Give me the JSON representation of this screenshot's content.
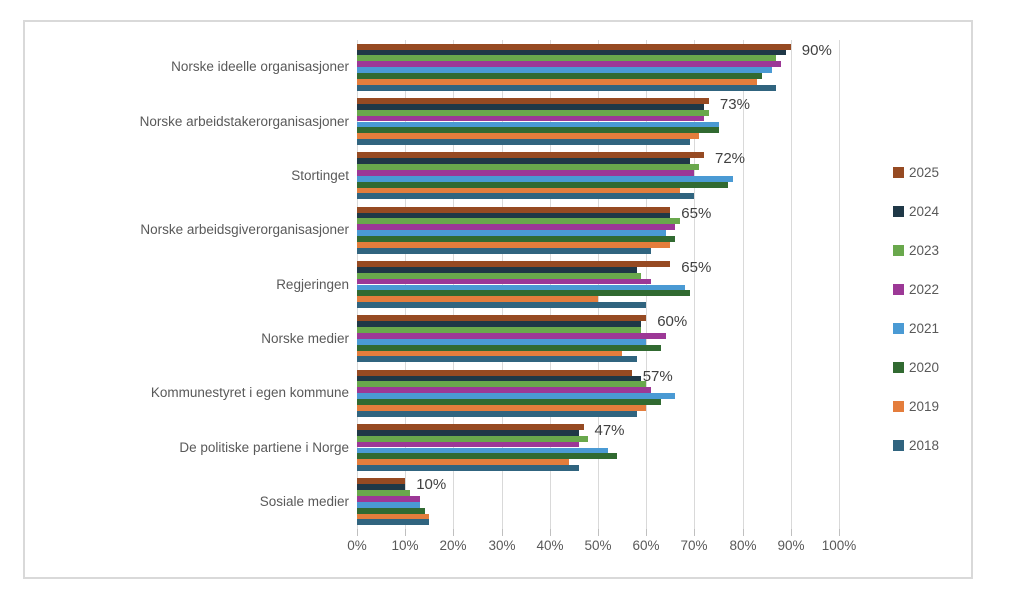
{
  "chart_data": {
    "type": "bar",
    "orientation": "horizontal",
    "categories": [
      "Norske ideelle organisasjoner",
      "Norske arbeidstakerorganisasjoner",
      "Stortinget",
      "Norske arbeidsgiverorganisasjoner",
      "Regjeringen",
      "Norske medier",
      "Kommunestyret i egen kommune",
      "De politiske partiene i Norge",
      "Sosiale medier"
    ],
    "series": [
      {
        "name": "2025",
        "color": "#964A22",
        "values": [
          90,
          73,
          72,
          65,
          65,
          60,
          57,
          47,
          10
        ]
      },
      {
        "name": "2024",
        "color": "#1F3847",
        "values": [
          89,
          72,
          69,
          65,
          58,
          59,
          59,
          46,
          10
        ]
      },
      {
        "name": "2023",
        "color": "#69A84C",
        "values": [
          87,
          73,
          71,
          67,
          59,
          59,
          60,
          48,
          11
        ]
      },
      {
        "name": "2022",
        "color": "#9C3896",
        "values": [
          88,
          72,
          70,
          66,
          61,
          64,
          61,
          46,
          13
        ]
      },
      {
        "name": "2021",
        "color": "#4A9AD4",
        "values": [
          86,
          75,
          78,
          64,
          68,
          60,
          66,
          52,
          13
        ]
      },
      {
        "name": "2020",
        "color": "#316A31",
        "values": [
          84,
          75,
          77,
          66,
          69,
          63,
          63,
          54,
          14
        ]
      },
      {
        "name": "2019",
        "color": "#E47D3C",
        "values": [
          83,
          71,
          67,
          65,
          50,
          55,
          60,
          44,
          15
        ]
      },
      {
        "name": "2018",
        "color": "#30647F",
        "values": [
          87,
          69,
          70,
          61,
          60,
          58,
          58,
          46,
          15
        ]
      }
    ],
    "data_labels": {
      "on_series": "2025",
      "labels": [
        "90%",
        "73%",
        "72%",
        "65%",
        "65%",
        "60%",
        "57%",
        "47%",
        "10%"
      ]
    },
    "x_axis": {
      "min": 0,
      "max": 100,
      "ticks": [
        "0%",
        "10%",
        "20%",
        "30%",
        "40%",
        "50%",
        "60%",
        "70%",
        "80%",
        "90%",
        "100%"
      ]
    },
    "legend": {
      "position": "right",
      "entries": [
        "2025",
        "2024",
        "2023",
        "2022",
        "2021",
        "2020",
        "2019",
        "2018"
      ]
    },
    "grid": true,
    "colors": {
      "gridline": "#D9D9D9",
      "frame_border": "#D9D9D9",
      "category_label": "#595959",
      "tick_label": "#595959",
      "value_label": "#404040",
      "background": "#FFFFFF"
    }
  }
}
